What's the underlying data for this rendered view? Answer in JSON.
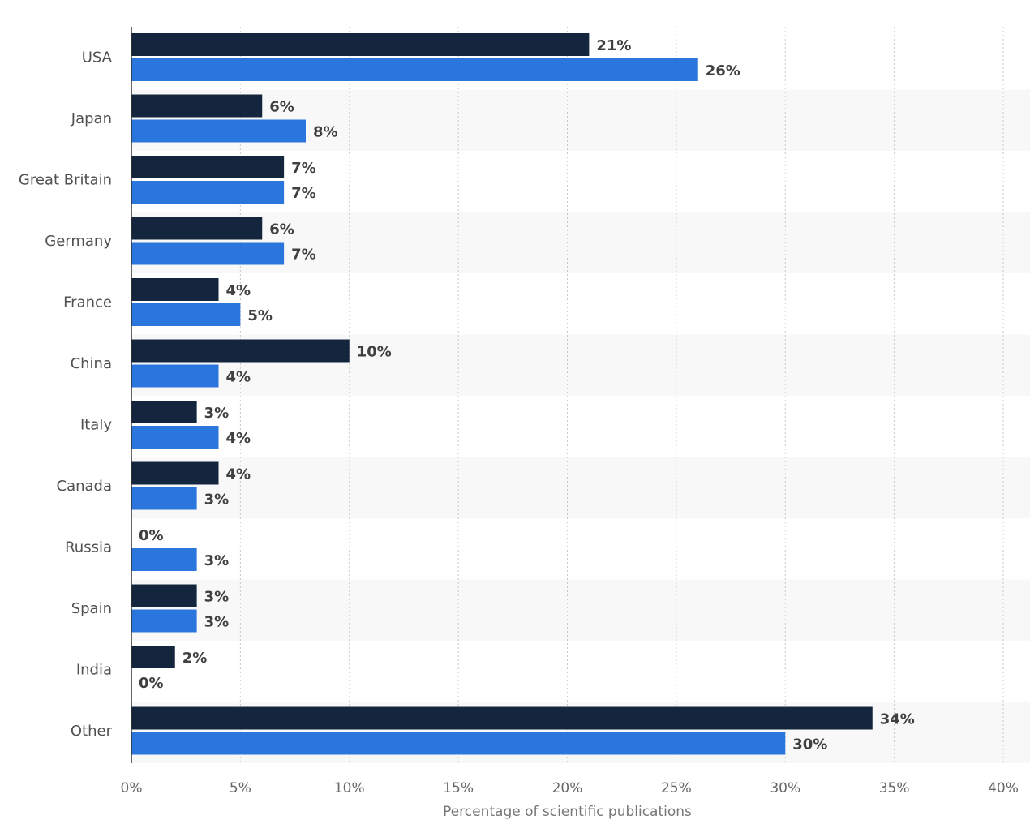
{
  "chart_data": {
    "type": "bar",
    "orientation": "horizontal",
    "categories": [
      "USA",
      "Japan",
      "Great Britain",
      "Germany",
      "France",
      "China",
      "Italy",
      "Canada",
      "Russia",
      "Spain",
      "India",
      "Other"
    ],
    "series": [
      {
        "color": "#13263d",
        "values": [
          21,
          6,
          7,
          6,
          4,
          10,
          3,
          4,
          0,
          3,
          2,
          34
        ],
        "labels": [
          "21%",
          "6%",
          "7%",
          "6%",
          "4%",
          "10%",
          "3%",
          "4%",
          "0%",
          "3%",
          "2%",
          "34%"
        ]
      },
      {
        "color": "#2b76dc",
        "values": [
          26,
          8,
          7,
          7,
          5,
          4,
          4,
          3,
          3,
          3,
          0,
          30
        ],
        "labels": [
          "26%",
          "8%",
          "7%",
          "7%",
          "5%",
          "4%",
          "4%",
          "3%",
          "3%",
          "3%",
          "0%",
          "30%"
        ]
      }
    ],
    "xlim": [
      0,
      40
    ],
    "xticks": [
      0,
      5,
      10,
      15,
      20,
      25,
      30,
      35,
      40
    ],
    "xtick_labels": [
      "0%",
      "5%",
      "10%",
      "15%",
      "20%",
      "25%",
      "30%",
      "35%",
      "40%"
    ],
    "xlabel": "Percentage of scientific publications",
    "ylabel": "",
    "title": "",
    "grid": "vertical dotted"
  }
}
